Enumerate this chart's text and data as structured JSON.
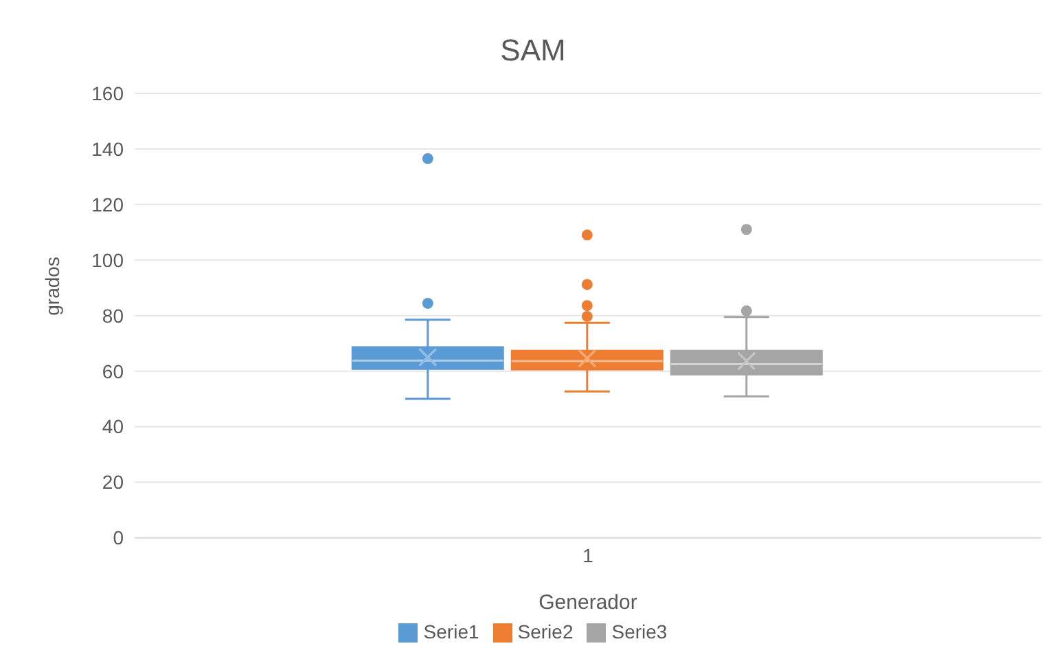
{
  "chart_data": {
    "type": "box",
    "title": "SAM",
    "xlabel": "Generador",
    "ylabel": "grados",
    "categories": [
      "1"
    ],
    "ylim": [
      0,
      160
    ],
    "yticks": [
      0,
      20,
      40,
      60,
      80,
      100,
      120,
      140,
      160
    ],
    "grid": "y",
    "legend": "bottom",
    "marker": "cross",
    "series": [
      {
        "name": "Serie1",
        "color": "#5b9bd5",
        "boxes": [
          {
            "low": 50,
            "q1": 60.7,
            "median": 63.8,
            "q3": 68.7,
            "high": 78.5,
            "mean": 65,
            "outliers": [
              84.4,
              136.5
            ]
          }
        ]
      },
      {
        "name": "Serie2",
        "color": "#ed7d31",
        "boxes": [
          {
            "low": 52.7,
            "q1": 60.5,
            "median": 63.6,
            "q3": 67.4,
            "high": 77.4,
            "mean": 64.6,
            "outliers": [
              79.7,
              83.6,
              91.2,
              109
            ]
          }
        ]
      },
      {
        "name": "Serie3",
        "color": "#a5a5a5",
        "boxes": [
          {
            "low": 50.9,
            "q1": 58.7,
            "median": 62.5,
            "q3": 67.4,
            "high": 79.5,
            "mean": 63.6,
            "outliers": [
              81.7,
              111
            ]
          }
        ]
      }
    ]
  }
}
